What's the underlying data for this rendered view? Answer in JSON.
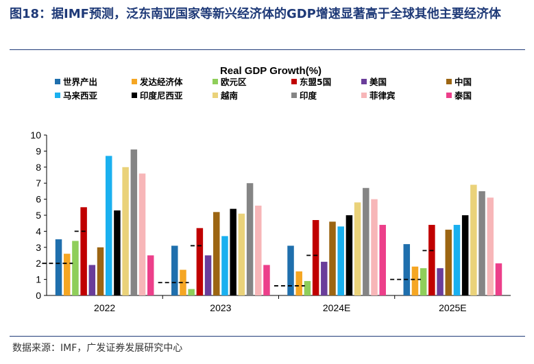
{
  "figure": {
    "title": "图18：据IMF预测，泛东南亚国家等新兴经济体的GDP增速显著高于全球其他主要经济体",
    "source": "数据来源：IMF，广发证券发展研究中心"
  },
  "chart_data": {
    "type": "bar",
    "title": "Real GDP Growth(%)",
    "xlabel": "",
    "ylabel": "",
    "ylim": [
      0,
      10
    ],
    "yticks": [
      "0",
      "1",
      "2",
      "3",
      "4",
      "5",
      "6",
      "7",
      "8",
      "9",
      "10"
    ],
    "categories": [
      "2022",
      "2023",
      "2024E",
      "2025E"
    ],
    "legend_position": "top",
    "grid": false,
    "series": [
      {
        "name": "世界产出",
        "color": "#1f6fad",
        "values": [
          3.5,
          3.1,
          3.1,
          3.2
        ]
      },
      {
        "name": "发达经济体",
        "color": "#f5a623",
        "values": [
          2.6,
          1.6,
          1.5,
          1.8
        ]
      },
      {
        "name": "欧元区",
        "color": "#8fce5a",
        "values": [
          3.4,
          0.4,
          0.9,
          1.7
        ]
      },
      {
        "name": "东盟5国",
        "color": "#c00000",
        "values": [
          5.5,
          4.2,
          4.7,
          4.4
        ]
      },
      {
        "name": "美国",
        "color": "#6a3d9a",
        "values": [
          1.9,
          2.5,
          2.1,
          1.7
        ]
      },
      {
        "name": "中国",
        "color": "#9c6512",
        "values": [
          3.0,
          5.2,
          4.6,
          4.1
        ]
      },
      {
        "name": "马来西亚",
        "color": "#1ab0ef",
        "values": [
          8.7,
          3.7,
          4.3,
          4.4
        ]
      },
      {
        "name": "印度尼西亚",
        "color": "#000000",
        "values": [
          5.3,
          5.4,
          5.0,
          5.0
        ]
      },
      {
        "name": "越南",
        "color": "#ead27a",
        "values": [
          8.0,
          5.1,
          5.8,
          6.9
        ]
      },
      {
        "name": "印度",
        "color": "#858585",
        "values": [
          9.1,
          7.0,
          6.7,
          6.5
        ]
      },
      {
        "name": "菲律宾",
        "color": "#f7b6b8",
        "values": [
          7.6,
          5.6,
          6.0,
          6.1
        ]
      },
      {
        "name": "泰国",
        "color": "#ec3f8a",
        "values": [
          2.5,
          1.9,
          4.4,
          2.0
        ]
      }
    ],
    "reference_lines": [
      {
        "category": "2022",
        "values": [
          2.0,
          4.0
        ]
      },
      {
        "category": "2023",
        "values": [
          0.8,
          3.1
        ]
      },
      {
        "category": "2024E",
        "values": [
          0.6,
          2.5
        ]
      },
      {
        "category": "2025E",
        "values": [
          1.0,
          2.8
        ]
      }
    ]
  }
}
